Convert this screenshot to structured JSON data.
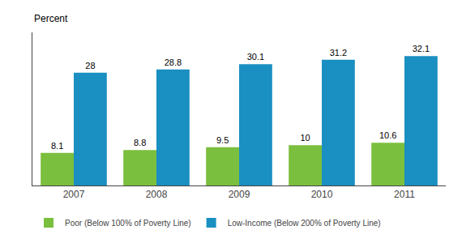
{
  "chart_data": {
    "type": "bar",
    "ylabel": "Percent",
    "categories": [
      "2007",
      "2008",
      "2009",
      "2010",
      "2011"
    ],
    "series": [
      {
        "name": "Poor (Below 100% of Poverty Line)",
        "color": "#7BBF3E",
        "values": [
          8.1,
          8.8,
          9.5,
          10,
          10.6
        ]
      },
      {
        "name": "Low-Income (Below 200% of Poverty Line)",
        "color": "#1A8FC1",
        "values": [
          28,
          28.8,
          30.1,
          31.2,
          32.1
        ]
      }
    ],
    "ylim": [
      0,
      38
    ],
    "yticks": [],
    "grid": false,
    "legend": "below",
    "data_labels": true,
    "tick_labels": "x"
  }
}
